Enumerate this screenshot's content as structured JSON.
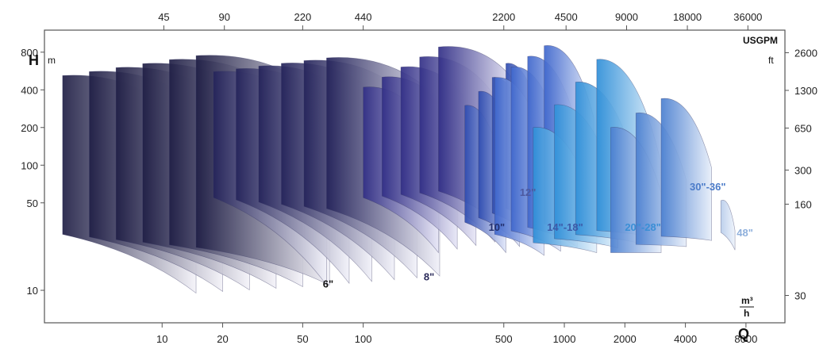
{
  "chart_data": {
    "type": "area",
    "title": "",
    "xlabel": "Q",
    "ylabel": "H",
    "x_unit_bottom": "m³/h",
    "x_unit_top": "USGPM",
    "y_unit_left": "m",
    "y_unit_right": "ft",
    "x_scale": "log",
    "y_scale": "log",
    "xlim": [
      2.6,
      12500
    ],
    "ylim": [
      5.5,
      1200
    ],
    "x_ticks_bottom": [
      {
        "value": 10,
        "label": "10"
      },
      {
        "value": 20,
        "label": "20"
      },
      {
        "value": 50,
        "label": "50"
      },
      {
        "value": 100,
        "label": "100"
      },
      {
        "value": 500,
        "label": "500"
      },
      {
        "value": 1000,
        "label": "1000"
      },
      {
        "value": 2000,
        "label": "2000"
      },
      {
        "value": 4000,
        "label": "4000"
      },
      {
        "value": 8000,
        "label": "8000"
      }
    ],
    "x_ticks_top": [
      {
        "value": 10.2,
        "label": "45"
      },
      {
        "value": 20.4,
        "label": "90"
      },
      {
        "value": 50,
        "label": "220"
      },
      {
        "value": 100,
        "label": "440"
      },
      {
        "value": 500,
        "label": "2200"
      },
      {
        "value": 1020,
        "label": "4500"
      },
      {
        "value": 2040,
        "label": "9000"
      },
      {
        "value": 4090,
        "label": "18000"
      },
      {
        "value": 8180,
        "label": "36000"
      }
    ],
    "y_ticks_left": [
      {
        "value": 10,
        "label": "10"
      },
      {
        "value": 50,
        "label": "50"
      },
      {
        "value": 100,
        "label": "100"
      },
      {
        "value": 200,
        "label": "200"
      },
      {
        "value": 400,
        "label": "400"
      },
      {
        "value": 800,
        "label": "800"
      }
    ],
    "y_ticks_right": [
      {
        "value": 9.1,
        "label": "30"
      },
      {
        "value": 48.8,
        "label": "160"
      },
      {
        "value": 91.4,
        "label": "300"
      },
      {
        "value": 198,
        "label": "650"
      },
      {
        "value": 396,
        "label": "1300"
      },
      {
        "value": 792,
        "label": "2600"
      }
    ],
    "grid": false,
    "legend": "none",
    "series": [
      {
        "name": "6\"",
        "label_color": "#111111",
        "label_at": [
          63,
          10.5
        ],
        "colors": [
          "#1f1e45",
          "#f4f3f9"
        ],
        "q_range": [
          3.2,
          68
        ],
        "h_top_left": [
          520,
          750
        ],
        "h_top_right": [
          180,
          320
        ],
        "h_bottom_left": [
          28,
          22
        ],
        "h_bottom_right": [
          9.5,
          11
        ],
        "notches": 6
      },
      {
        "name": "8\"",
        "label_color": "#2a2a5a",
        "label_at": [
          200,
          12
        ],
        "colors": [
          "#24235a",
          "#f1f1f9"
        ],
        "q_range": [
          18,
          240
        ],
        "h_top_left": [
          560,
          720
        ],
        "h_top_right": [
          200,
          330
        ],
        "h_bottom_left": [
          55,
          45
        ],
        "h_bottom_right": [
          11,
          13
        ],
        "notches": 6
      },
      {
        "name": "10\"",
        "label_color": "#23306e",
        "label_at": [
          420,
          30
        ],
        "colors": [
          "#312e86",
          "#e7e6f6"
        ],
        "q_range": [
          100,
          560
        ],
        "h_top_left": [
          420,
          880
        ],
        "h_top_right": [
          140,
          480
        ],
        "h_bottom_left": [
          55,
          62
        ],
        "h_bottom_right": [
          20,
          26
        ],
        "notches": 5
      },
      {
        "name": "12\"",
        "label_color": "#4d5aa0",
        "label_at": [
          600,
          57
        ],
        "colors": [
          "#2d4bb0",
          "#dfe5f8"
        ],
        "q_range": [
          320,
          820
        ],
        "h_top_left": [
          300,
          650
        ],
        "h_top_right": [
          70,
          130
        ],
        "h_bottom_left": [
          35,
          45
        ],
        "h_bottom_right": [
          20,
          28
        ],
        "notches": 4
      },
      {
        "name": "14\"-18\"",
        "label_color": "#3d5aa8",
        "label_at": [
          820,
          30
        ],
        "colors": [
          "#3e66cc",
          "#e2e9f9"
        ],
        "q_range": [
          450,
          1400
        ],
        "h_top_left": [
          500,
          900
        ],
        "h_top_right": [
          140,
          240
        ],
        "h_bottom_left": [
          28,
          34
        ],
        "h_bottom_right": [
          19,
          24
        ],
        "notches": 4
      },
      {
        "name": "20\"-28\"",
        "label_color": "#3b8fd6",
        "label_at": [
          2000,
          30
        ],
        "colors": [
          "#2f8fd8",
          "#e4f1fb"
        ],
        "q_range": [
          700,
          3000
        ],
        "h_top_left": [
          200,
          700
        ],
        "h_top_right": [
          40,
          110
        ],
        "h_bottom_left": [
          24,
          30
        ],
        "h_bottom_right": [
          20,
          26
        ],
        "notches": 4
      },
      {
        "name": "30\"-36\"",
        "label_color": "#4c7cc9",
        "label_at": [
          4200,
          63
        ],
        "colors": [
          "#4a7fd0",
          "#e7eef9"
        ],
        "q_range": [
          1700,
          5400
        ],
        "h_top_left": [
          200,
          340
        ],
        "h_top_right": [
          60,
          95
        ],
        "h_bottom_left": [
          20,
          27
        ],
        "h_bottom_right": [
          20,
          25
        ],
        "notches": 3
      },
      {
        "name": "48\"",
        "label_color": "#8fb0dc",
        "label_at": [
          7200,
          27
        ],
        "colors": [
          "#b8cdeb",
          "#eef3fb"
        ],
        "q_range": [
          6000,
          8300
        ],
        "h_top_left": [
          52,
          60
        ],
        "h_top_right": [
          30,
          40
        ],
        "h_bottom_left": [
          29,
          33
        ],
        "h_bottom_right": [
          21,
          24
        ],
        "notches": 1
      }
    ]
  }
}
